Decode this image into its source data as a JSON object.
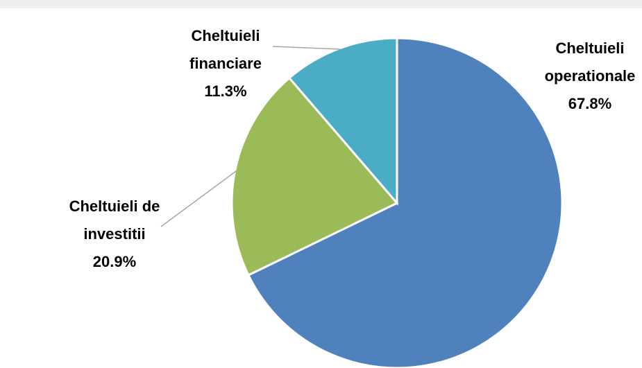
{
  "chart_data": {
    "type": "pie",
    "categories": [
      "Cheltuieli operationale",
      "Cheltuieli de investitii",
      "Cheltuieli financiare"
    ],
    "values": [
      67.8,
      20.9,
      11.3
    ],
    "value_labels": [
      "67.8%",
      "20.9%",
      "11.3%"
    ],
    "colors": [
      "#4f81bd",
      "#9bbb59",
      "#4bacc6"
    ]
  }
}
